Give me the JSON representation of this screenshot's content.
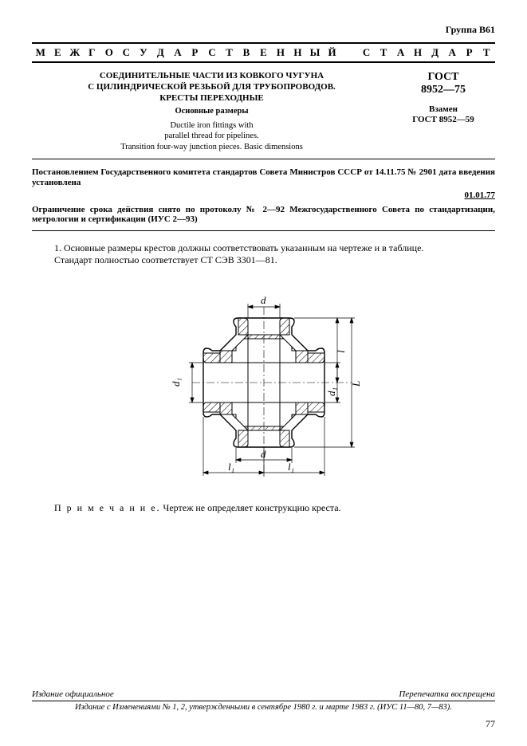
{
  "group": "Группа В61",
  "banner_words": [
    "М",
    "Е",
    "Ж",
    "Г",
    "О",
    "С",
    "У",
    "Д",
    "А",
    "Р",
    "С",
    "Т",
    "В",
    "Е",
    "Н",
    "Н",
    "Ы",
    "Й",
    "",
    "С",
    "Т",
    "А",
    "Н",
    "Д",
    "А",
    "Р",
    "Т"
  ],
  "title_ru_line1": "СОЕДИНИТЕЛЬНЫЕ ЧАСТИ ИЗ КОВКОГО ЧУГУНА",
  "title_ru_line2": "С ЦИЛИНДРИЧЕСКОЙ РЕЗЬБОЙ ДЛЯ ТРУБОПРОВОДОВ.",
  "title_ru_line3": "КРЕСТЫ ПЕРЕХОДНЫЕ",
  "subtitle_ru": "Основные размеры",
  "title_en_line1": "Ductile iron fittings with",
  "title_en_line2": "parallel thread for pipelines.",
  "title_en_line3": "Transition four-way junction pieces. Basic dimensions",
  "gost_label": "ГОСТ",
  "gost_number": "8952—75",
  "replace_label": "Взамен",
  "replace_value": "ГОСТ 8952—59",
  "decree_text": "Постановлением Государственного комитета стандартов Совета Министров СССР от 14.11.75 № 2901 дата введения установлена",
  "decree_date": "01.01.77",
  "restriction_text": "Ограничение срока действия снято по протоколу № 2—92 Межгосударственного Совета по стандартизации, метрологии и сертификации (ИУС 2—93)",
  "para1": "1. Основные размеры крестов должны соответствовать указанным на чертеже и в таблице.",
  "para2": "Стандарт полностью соответствует СТ СЭВ 3301—81.",
  "note_label": "П р и м е ч а н и е.",
  "note_text": "Чертеж не определяет конструкцию креста.",
  "footer_left": "Издание официальное",
  "footer_right": "Перепечатка воспрещена",
  "footer_line2": "Издание с Изменениями № 1, 2, утвержденными в сентябре 1980 г. и марте 1983 г. (ИУС 11—80, 7—83).",
  "page_number": "77",
  "diagram": {
    "labels": {
      "d_top": "d",
      "d_bottom": "d",
      "d1_left": "d₁",
      "d1_right": "d₁",
      "L_right_outer": "L",
      "l_right_inner": "l",
      "l1_bottom_left": "l₁",
      "l1_bottom_right": "l₁"
    },
    "colors": {
      "stroke": "#000000",
      "hatch": "#000000",
      "fill": "#ffffff",
      "background": "#ffffff"
    },
    "stroke_width_main": 1.5,
    "stroke_width_thin": 0.7,
    "font_size_label": 13,
    "font_style_label": "italic"
  }
}
